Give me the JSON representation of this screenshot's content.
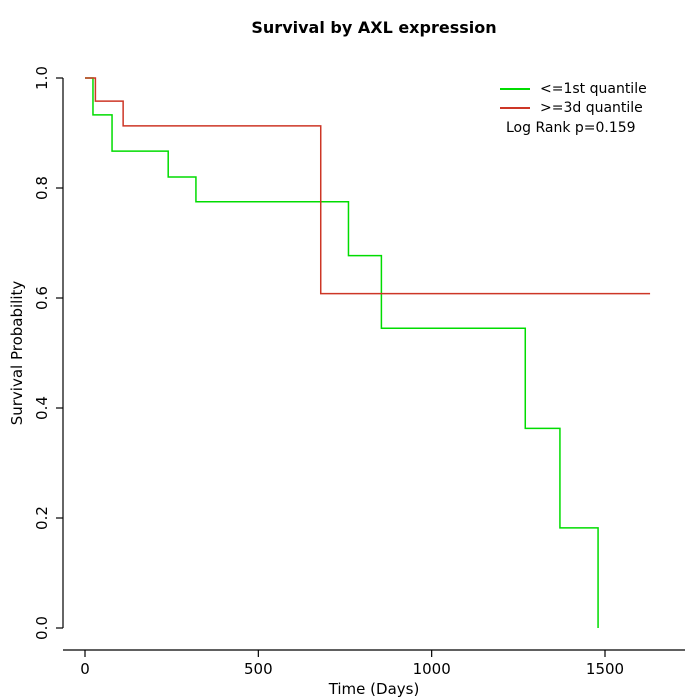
{
  "chart_data": {
    "type": "line",
    "subtype": "kaplan-meier-step",
    "title": "Survival by AXL expression",
    "xlabel": "Time (Days)",
    "ylabel": "Survival Probability",
    "xlim": [
      0,
      1630
    ],
    "ylim": [
      0.0,
      1.0
    ],
    "grid": false,
    "legend_position": "topright",
    "annotation": "Log Rank p=0.159",
    "x_ticks": [
      0,
      500,
      1000,
      1500
    ],
    "x_tick_labels": [
      "0",
      "500",
      "1000",
      "1500"
    ],
    "y_ticks": [
      0.0,
      0.2,
      0.4,
      0.6,
      0.8,
      1.0
    ],
    "y_tick_labels": [
      "0.0",
      "0.2",
      "0.4",
      "0.6",
      "0.8",
      "1.0"
    ],
    "axis_color": "#000000",
    "series": [
      {
        "name": "<=1st quantile",
        "color": "#00dc00",
        "points": [
          [
            0,
            1.0
          ],
          [
            23,
            0.933
          ],
          [
            78,
            0.867
          ],
          [
            240,
            0.82
          ],
          [
            320,
            0.775
          ],
          [
            760,
            0.677
          ],
          [
            855,
            0.545
          ],
          [
            1270,
            0.363
          ],
          [
            1370,
            0.182
          ],
          [
            1480,
            0.0
          ]
        ]
      },
      {
        "name": ">=3d quantile",
        "color": "#cd3626",
        "points": [
          [
            0,
            1.0
          ],
          [
            30,
            0.958
          ],
          [
            110,
            0.913
          ],
          [
            680,
            0.608
          ],
          [
            1630,
            0.608
          ]
        ]
      }
    ]
  }
}
